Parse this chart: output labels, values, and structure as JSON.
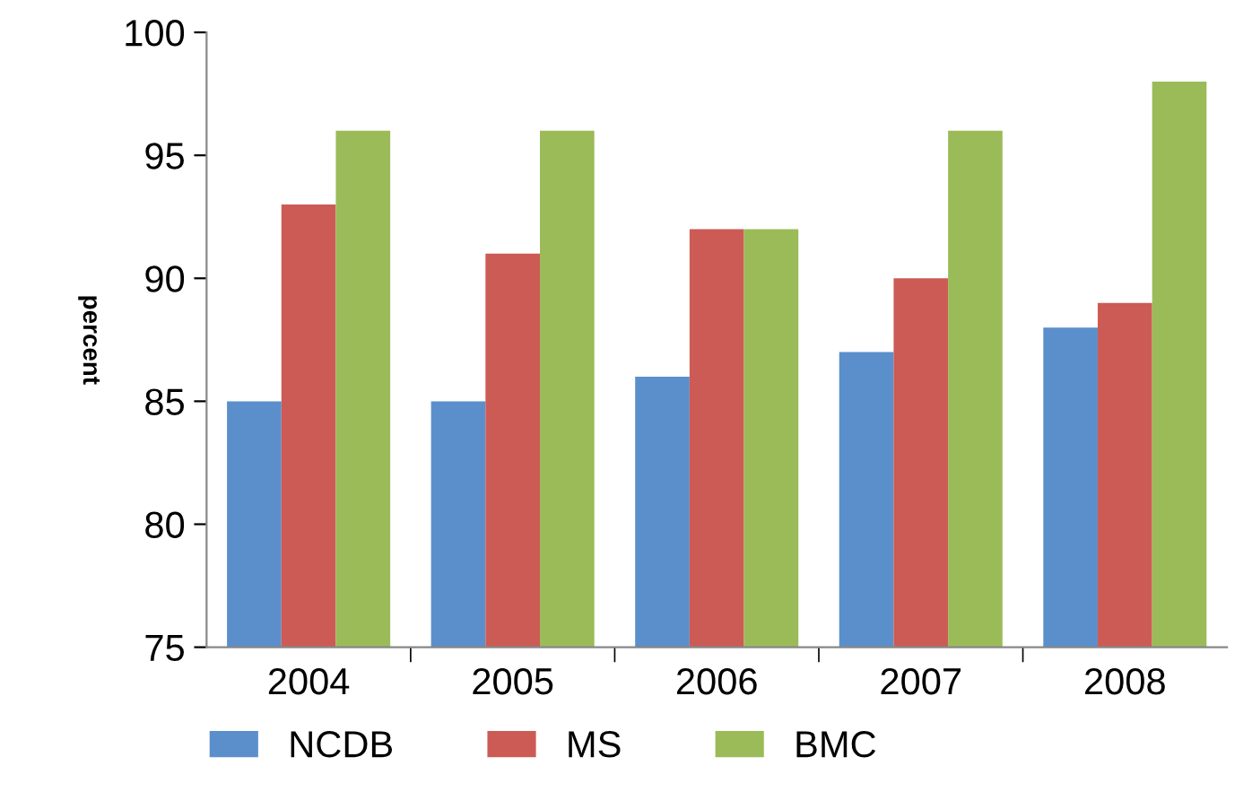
{
  "chart_data": {
    "type": "bar",
    "ylabel": "percent",
    "categories": [
      "2004",
      "2005",
      "2006",
      "2007",
      "2008"
    ],
    "series": [
      {
        "name": "NCDB",
        "color": "#5b8fcc",
        "values": [
          85,
          85,
          86,
          87,
          88
        ]
      },
      {
        "name": "MS",
        "color": "#cc5b55",
        "values": [
          93,
          91,
          92,
          90,
          89
        ]
      },
      {
        "name": "BMC",
        "color": "#9bbb59",
        "values": [
          96,
          96,
          92,
          96,
          98
        ]
      }
    ],
    "ylim": [
      75,
      100
    ],
    "yticks": [
      75,
      80,
      85,
      90,
      95,
      100
    ],
    "grid": false,
    "legend": "bottom"
  }
}
